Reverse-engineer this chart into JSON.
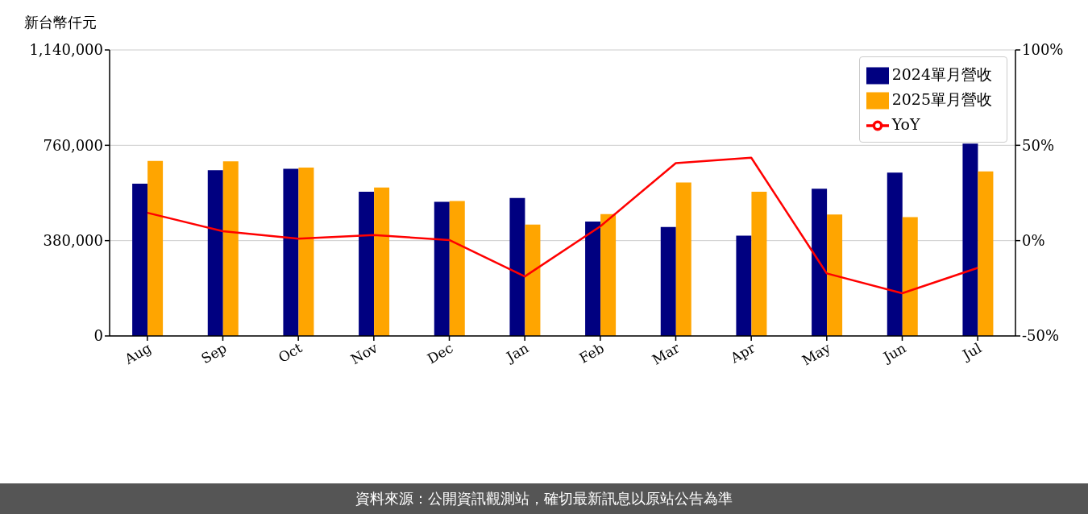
{
  "chart_data": {
    "type": "bar",
    "ylabel": "新台幣仟元",
    "categories": [
      "Aug",
      "Sep",
      "Oct",
      "Nov",
      "Dec",
      "Jan",
      "Feb",
      "Mar",
      "Apr",
      "May",
      "Jun",
      "Jul"
    ],
    "series": [
      {
        "name": "2024單月營收",
        "color": "#000080",
        "values": [
          607000,
          661000,
          666000,
          575000,
          535000,
          550000,
          456000,
          434000,
          400000,
          587000,
          651000,
          767000
        ]
      },
      {
        "name": "2025單月營收",
        "color": "#ffa500",
        "values": [
          698000,
          696000,
          671000,
          592000,
          538000,
          444000,
          486000,
          612000,
          575000,
          484000,
          474000,
          656000
        ]
      },
      {
        "name": "YoY",
        "type": "line",
        "axis": "y2",
        "color": "#ff0000",
        "marker": "none",
        "values": [
          14.6,
          4.9,
          1.0,
          2.9,
          0.3,
          -18.8,
          7.5,
          40.6,
          43.5,
          -17.2,
          -27.6,
          -14.3
        ]
      }
    ],
    "ylim": [
      0,
      1140000
    ],
    "yticks": [
      {
        "value": 0,
        "label": "0"
      },
      {
        "value": 380000,
        "label": "380,000"
      },
      {
        "value": 760000,
        "label": "760,000"
      },
      {
        "value": 1140000,
        "label": "1,140,000"
      }
    ],
    "y2lim": [
      -50,
      100
    ],
    "y2ticks": [
      {
        "value": -50,
        "label": "-50%"
      },
      {
        "value": 0,
        "label": "0%"
      },
      {
        "value": 50,
        "label": "50%"
      },
      {
        "value": 100,
        "label": "100%"
      }
    ],
    "grid": "y",
    "legend": "top right",
    "annotations": [
      "資料來源：公開資訊觀測站，確切最新訊息以原站公告為準"
    ]
  }
}
